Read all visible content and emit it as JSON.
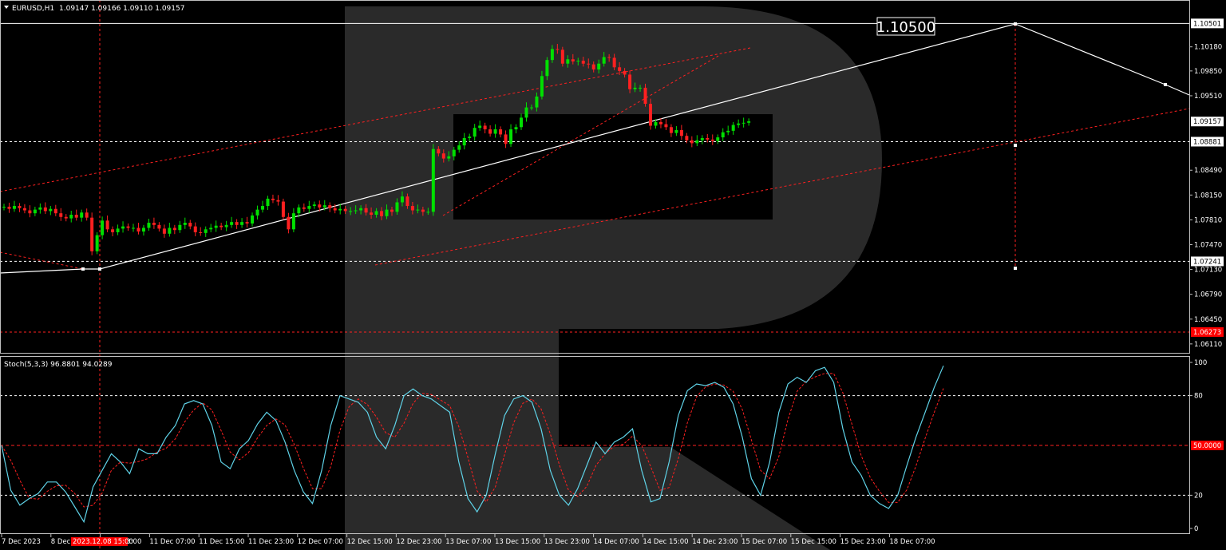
{
  "header": {
    "symbol": "EURUSD,H1",
    "ohlc": "1.09147 1.09166 1.09110 1.09157"
  },
  "target_label": "1.10500",
  "price_axis": {
    "ticks": [
      "1.10180",
      "1.09850",
      "1.09510",
      "1.08490",
      "1.08150",
      "1.07810",
      "1.07470",
      "1.07130",
      "1.06790",
      "1.06450",
      "1.06110"
    ],
    "markers": [
      {
        "text": "1.10501",
        "price": 1.10501,
        "bg": "#ffffff",
        "fg": "#000000"
      },
      {
        "text": "1.09157",
        "price": 1.09157,
        "bg": "#ffffff",
        "fg": "#000000"
      },
      {
        "text": "1.08881",
        "price": 1.08881,
        "bg": "#ffffff",
        "fg": "#000000"
      },
      {
        "text": "1.07241",
        "price": 1.07241,
        "bg": "#ffffff",
        "fg": "#000000"
      },
      {
        "text": "1.06273",
        "price": 1.06273,
        "bg": "#ff0000",
        "fg": "#ffffff"
      }
    ],
    "hidden_label": "1.08830"
  },
  "stochastic": {
    "label": "Stoch(5,3,3) 96.8801 94.0289",
    "ticks": [
      "100",
      "80",
      "20",
      "0"
    ],
    "level_marker": "50.0000"
  },
  "time_axis": {
    "labels": [
      "7 Dec 2023",
      "8 Dec",
      "8 Dec 23:00",
      "11 Dec 07:00",
      "11 Dec 15:00",
      "11 Dec 23:00",
      "12 Dec 07:00",
      "12 Dec 15:00",
      "12 Dec 23:00",
      "13 Dec 07:00",
      "13 Dec 15:00",
      "13 Dec 23:00",
      "14 Dec 07:00",
      "14 Dec 15:00",
      "14 Dec 23:00",
      "15 Dec 07:00",
      "15 Dec 15:00",
      "15 Dec 23:00",
      "18 Dec 07:00"
    ],
    "highlight": "2023.12.08 15:00"
  },
  "colors": {
    "bull": "#00e000",
    "bear": "#ff2020",
    "main_line": "#5fd3e8",
    "signal_line": "#ff2020",
    "grid_level": "#ffffff",
    "red_dashed": "#ff2020",
    "watermark": "#2a2a2a"
  },
  "chart_data": {
    "type": "candlestick",
    "title": "EURUSD,H1",
    "ylim": [
      1.0601,
      1.108
    ],
    "candle_closes": [
      1.0799,
      1.0796,
      1.08,
      1.0797,
      1.0794,
      1.079,
      1.0795,
      1.0798,
      1.0793,
      1.0796,
      1.079,
      1.0785,
      1.0783,
      1.0788,
      1.0784,
      1.0791,
      1.0784,
      1.0738,
      1.076,
      1.078,
      1.0768,
      1.0764,
      1.0769,
      1.0772,
      1.077,
      1.077,
      1.0765,
      1.077,
      1.0777,
      1.0774,
      1.0769,
      1.0762,
      1.077,
      1.0767,
      1.0774,
      1.0777,
      1.0772,
      1.0764,
      1.0763,
      1.0768,
      1.077,
      1.0773,
      1.0771,
      1.0774,
      1.0778,
      1.0774,
      1.0778,
      1.0776,
      1.0787,
      1.0795,
      1.08,
      1.081,
      1.0808,
      1.0806,
      1.0785,
      1.0768,
      1.079,
      1.0798,
      1.0796,
      1.08,
      1.0802,
      1.0798,
      1.0801,
      1.0797,
      1.0794,
      1.0796,
      1.0793,
      1.0793,
      1.0794,
      1.0797,
      1.0791,
      1.0788,
      1.0793,
      1.0786,
      1.0795,
      1.0792,
      1.0805,
      1.0813,
      1.08,
      1.0794,
      1.0795,
      1.0792,
      1.0792,
      1.0878,
      1.0872,
      1.0865,
      1.0868,
      1.0877,
      1.0883,
      1.0893,
      1.0895,
      1.0907,
      1.091,
      1.0905,
      1.0899,
      1.0905,
      1.0898,
      1.0885,
      1.0905,
      1.0908,
      1.0921,
      1.0935,
      1.0935,
      1.095,
      1.0978,
      1.1,
      1.1015,
      1.1014,
      1.0995,
      1.1001,
      1.0998,
      1.0999,
      1.0995,
      1.0994,
      1.0987,
      1.0995,
      1.1004,
      1.1003,
      1.099,
      1.0985,
      1.098,
      1.096,
      1.0962,
      1.0962,
      1.094,
      1.091,
      1.0915,
      1.0912,
      1.0908,
      1.09,
      1.0904,
      1.0896,
      1.089,
      1.0886,
      1.089,
      1.0893,
      1.0891,
      1.0889,
      1.0894,
      1.0901,
      1.0903,
      1.0911,
      1.0913,
      1.0914,
      1.0916
    ],
    "levels": [
      1.10501,
      1.08881,
      1.07241,
      1.06273
    ],
    "stoch_main": [
      50,
      23,
      14,
      18,
      21,
      28,
      28,
      22,
      13,
      4,
      25,
      35,
      45,
      40,
      33,
      48,
      45,
      45,
      55,
      62,
      75,
      77,
      75,
      62,
      40,
      36,
      48,
      53,
      63,
      70,
      65,
      52,
      35,
      22,
      15,
      35,
      62,
      80,
      78,
      76,
      70,
      55,
      48,
      62,
      80,
      84,
      80,
      78,
      74,
      70,
      40,
      18,
      10,
      20,
      45,
      68,
      78,
      80,
      76,
      60,
      35,
      20,
      14,
      24,
      38,
      52,
      45,
      52,
      55,
      60,
      35,
      16,
      18,
      40,
      68,
      83,
      87,
      86,
      88,
      85,
      75,
      55,
      30,
      20,
      40,
      70,
      87,
      91,
      88,
      95,
      97,
      88,
      60,
      40,
      32,
      20,
      15,
      12,
      20,
      38,
      55,
      70,
      85,
      98
    ]
  }
}
